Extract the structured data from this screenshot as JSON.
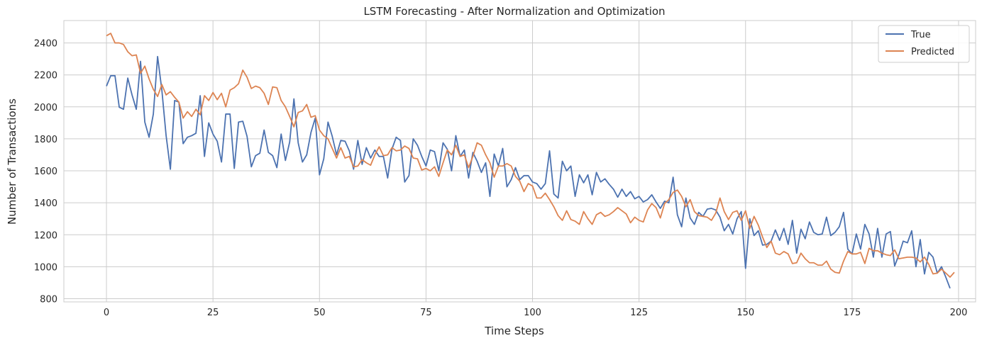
{
  "chart_data": {
    "type": "line",
    "title": "LSTM Forecasting - After Normalization and Optimization",
    "xlabel": "Time Steps",
    "ylabel": "Number of Transactions",
    "xlim": [
      -10,
      204
    ],
    "ylim": [
      780,
      2540
    ],
    "xticks": [
      0,
      25,
      50,
      75,
      100,
      125,
      150,
      175,
      200
    ],
    "yticks": [
      800,
      1000,
      1200,
      1400,
      1600,
      1800,
      2000,
      2200,
      2400
    ],
    "grid": true,
    "legend_position": "top-right",
    "series": [
      {
        "name": "True",
        "color": "#4c72b0",
        "values": [
          2130,
          2195,
          2195,
          1998,
          1985,
          2180,
          2075,
          1985,
          2285,
          1905,
          1810,
          1955,
          2315,
          2105,
          1820,
          1610,
          2040,
          2030,
          1770,
          1810,
          1820,
          1835,
          2070,
          1690,
          1900,
          1830,
          1785,
          1655,
          1955,
          1955,
          1615,
          1905,
          1910,
          1815,
          1625,
          1695,
          1710,
          1855,
          1715,
          1695,
          1620,
          1830,
          1665,
          1780,
          2050,
          1775,
          1655,
          1700,
          1840,
          1930,
          1575,
          1675,
          1905,
          1815,
          1700,
          1790,
          1785,
          1725,
          1610,
          1790,
          1640,
          1745,
          1680,
          1730,
          1690,
          1690,
          1555,
          1735,
          1810,
          1790,
          1530,
          1570,
          1800,
          1760,
          1690,
          1630,
          1730,
          1720,
          1600,
          1775,
          1735,
          1600,
          1820,
          1690,
          1730,
          1555,
          1715,
          1660,
          1590,
          1650,
          1440,
          1705,
          1630,
          1740,
          1500,
          1545,
          1620,
          1545,
          1570,
          1570,
          1530,
          1520,
          1485,
          1520,
          1725,
          1455,
          1430,
          1660,
          1600,
          1630,
          1440,
          1575,
          1525,
          1575,
          1450,
          1590,
          1530,
          1550,
          1515,
          1485,
          1435,
          1485,
          1440,
          1470,
          1425,
          1440,
          1405,
          1420,
          1450,
          1405,
          1365,
          1410,
          1400,
          1560,
          1325,
          1250,
          1430,
          1305,
          1265,
          1340,
          1315,
          1360,
          1365,
          1355,
          1310,
          1225,
          1265,
          1205,
          1300,
          1345,
          990,
          1300,
          1195,
          1225,
          1135,
          1140,
          1160,
          1230,
          1165,
          1240,
          1140,
          1290,
          1085,
          1235,
          1175,
          1280,
          1215,
          1200,
          1205,
          1310,
          1195,
          1215,
          1250,
          1340,
          1110,
          1080,
          1205,
          1110,
          1265,
          1205,
          1060,
          1240,
          1060,
          1205,
          1220,
          1005,
          1075,
          1160,
          1150,
          1225,
          1000,
          1170,
          955,
          1090,
          1060,
          960,
          1000,
          935,
          865
        ]
      },
      {
        "name": "Predicted",
        "color": "#dd8452",
        "values": [
          2445,
          2460,
          2400,
          2400,
          2390,
          2345,
          2320,
          2325,
          2210,
          2255,
          2175,
          2110,
          2065,
          2140,
          2075,
          2095,
          2060,
          2030,
          1930,
          1970,
          1940,
          1985,
          1950,
          2070,
          2040,
          2090,
          2045,
          2085,
          2000,
          2105,
          2120,
          2145,
          2230,
          2185,
          2115,
          2130,
          2120,
          2085,
          2015,
          2125,
          2120,
          2040,
          2000,
          1940,
          1875,
          1965,
          1975,
          2015,
          1935,
          1945,
          1855,
          1820,
          1800,
          1740,
          1680,
          1745,
          1680,
          1690,
          1625,
          1630,
          1670,
          1650,
          1635,
          1700,
          1750,
          1695,
          1700,
          1745,
          1725,
          1730,
          1755,
          1740,
          1680,
          1675,
          1605,
          1615,
          1600,
          1625,
          1565,
          1650,
          1730,
          1700,
          1760,
          1690,
          1700,
          1620,
          1690,
          1775,
          1760,
          1700,
          1650,
          1560,
          1630,
          1630,
          1645,
          1630,
          1565,
          1535,
          1470,
          1520,
          1505,
          1430,
          1430,
          1460,
          1420,
          1375,
          1320,
          1290,
          1350,
          1295,
          1285,
          1265,
          1345,
          1300,
          1265,
          1325,
          1340,
          1315,
          1325,
          1345,
          1370,
          1350,
          1330,
          1275,
          1310,
          1290,
          1280,
          1355,
          1395,
          1370,
          1305,
          1395,
          1420,
          1465,
          1480,
          1440,
          1375,
          1420,
          1345,
          1320,
          1315,
          1310,
          1290,
          1335,
          1430,
          1345,
          1295,
          1340,
          1350,
          1290,
          1350,
          1240,
          1315,
          1260,
          1185,
          1120,
          1160,
          1085,
          1075,
          1095,
          1080,
          1020,
          1025,
          1085,
          1050,
          1025,
          1025,
          1010,
          1010,
          1035,
          985,
          965,
          960,
          1035,
          1095,
          1080,
          1080,
          1090,
          1020,
          1115,
          1100,
          1100,
          1085,
          1075,
          1070,
          1105,
          1050,
          1055,
          1060,
          1060,
          1055,
          1030,
          1060,
          1015,
          955,
          960,
          985,
          960,
          935,
          965
        ]
      }
    ]
  }
}
